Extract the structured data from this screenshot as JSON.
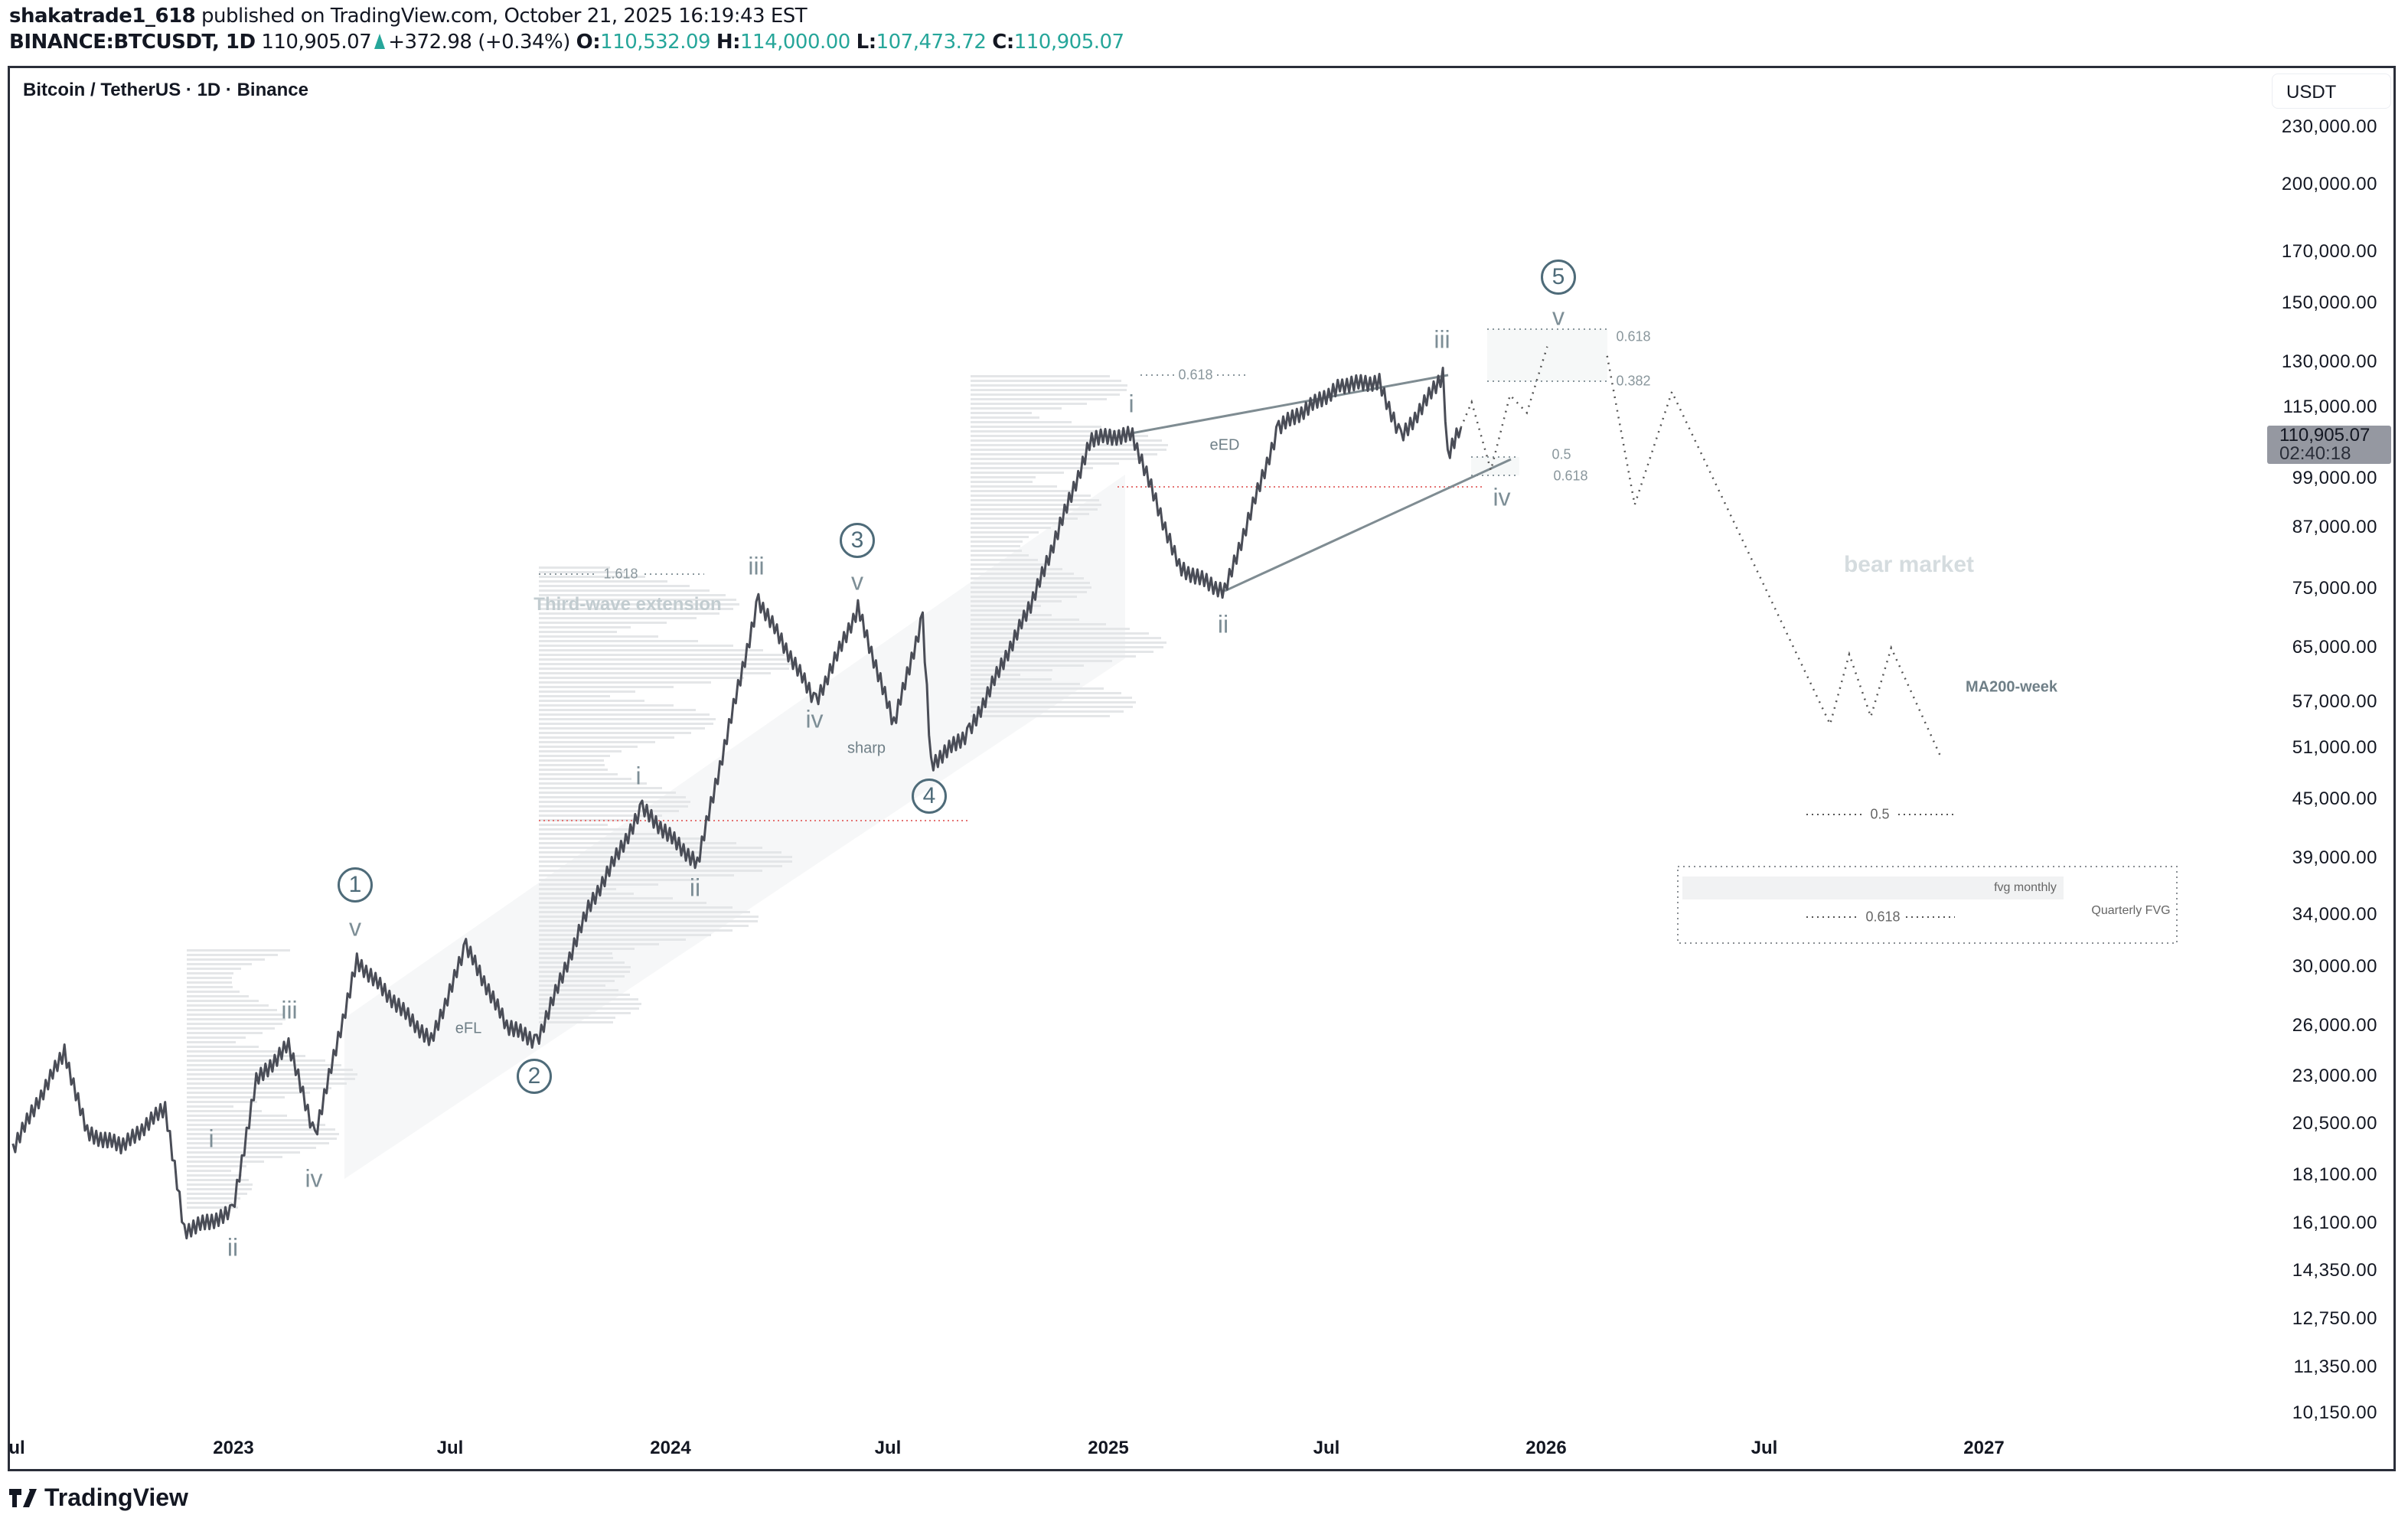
{
  "header": {
    "author": "shakatrade1_618",
    "published": "published on TradingView.com, October 21, 2025 16:19:43 EST",
    "symbol": "BINANCE:BTCUSDT, 1D",
    "last": "110,905.07",
    "change": "+372.98 (+0.34%)",
    "o_label": "O:",
    "o": "110,532.09",
    "h_label": "H:",
    "h": "114,000.00",
    "l_label": "L:",
    "l": "107,473.72",
    "c_label": "C:",
    "c": "110,905.07"
  },
  "chart_title": "Bitcoin / TetherUS · 1D · Binance",
  "currency": "USDT",
  "last_price_label": {
    "price": "110,905.07",
    "countdown": "02:40:18"
  },
  "brand": "TradingView",
  "colors": {
    "up": "#26a69a",
    "price_line": "#4a4d57",
    "wave_label": "#7d8e96",
    "circle_label": "#4e6b79",
    "fib_red": "#e57373"
  },
  "chart_data": {
    "type": "line",
    "scale": "log",
    "ylim": [
      10150,
      230000
    ],
    "grid": false,
    "y_ticks": [
      "230,000.00",
      "200,000.00",
      "170,000.00",
      "150,000.00",
      "130,000.00",
      "115,000.00",
      "99,000.00",
      "87,000.00",
      "75,000.00",
      "65,000.00",
      "57,000.00",
      "51,000.00",
      "45,000.00",
      "39,000.00",
      "34,000.00",
      "30,000.00",
      "26,000.00",
      "23,000.00",
      "20,500.00",
      "18,100.00",
      "16,100.00",
      "14,350.00",
      "12,750.00",
      "11,350.00",
      "10,150.00"
    ],
    "x_ticks": [
      "ul",
      "2023",
      "Jul",
      "2024",
      "Jul",
      "2025",
      "Jul",
      "2026",
      "Jul",
      "2027"
    ],
    "price": [
      [
        "2022-07-01",
        19300
      ],
      [
        "2022-08-13",
        24400
      ],
      [
        "2022-09-01",
        20000
      ],
      [
        "2022-10-01",
        19400
      ],
      [
        "2022-11-05",
        21300
      ],
      [
        "2022-11-21",
        15800
      ],
      [
        "2022-12-31",
        16500
      ],
      [
        "2023-01-20",
        22700
      ],
      [
        "2023-02-16",
        24800
      ],
      [
        "2023-03-10",
        19900
      ],
      [
        "2023-04-14",
        30400
      ],
      [
        "2023-06-15",
        25000
      ],
      [
        "2023-07-14",
        31500
      ],
      [
        "2023-08-17",
        26000
      ],
      [
        "2023-09-11",
        25000
      ],
      [
        "2023-10-24",
        34500
      ],
      [
        "2023-12-08",
        44000
      ],
      [
        "2024-01-23",
        38500
      ],
      [
        "2024-03-14",
        73000
      ],
      [
        "2024-05-01",
        57000
      ],
      [
        "2024-06-05",
        71500
      ],
      [
        "2024-07-05",
        54000
      ],
      [
        "2024-07-29",
        70000
      ],
      [
        "2024-08-05",
        49000
      ],
      [
        "2024-09-06",
        53000
      ],
      [
        "2024-10-29",
        73000
      ],
      [
        "2024-12-17",
        108000
      ],
      [
        "2025-01-20",
        109000
      ],
      [
        "2025-02-28",
        79000
      ],
      [
        "2025-04-07",
        74500
      ],
      [
        "2025-05-22",
        111000
      ],
      [
        "2025-07-14",
        123000
      ],
      [
        "2025-08-14",
        124000
      ],
      [
        "2025-09-01",
        108000
      ],
      [
        "2025-10-06",
        126000
      ],
      [
        "2025-10-10",
        104000
      ],
      [
        "2025-10-21",
        110905
      ]
    ],
    "projection_a": [
      [
        "2025-10-21",
        110905
      ],
      [
        "2025-10-30",
        118000
      ],
      [
        "2025-11-15",
        100000
      ],
      [
        "2025-12-01",
        120000
      ],
      [
        "2025-12-15",
        115000
      ],
      [
        "2026-01-01",
        135000
      ]
    ],
    "projection_b": [
      [
        "2026-02-20",
        132000
      ],
      [
        "2026-03-15",
        92000
      ],
      [
        "2026-04-15",
        121000
      ],
      [
        "2026-08-25",
        54000
      ],
      [
        "2026-09-10",
        64000
      ],
      [
        "2026-09-28",
        55000
      ],
      [
        "2026-10-15",
        65000
      ],
      [
        "2026-11-25",
        50000
      ]
    ]
  },
  "annotations": {
    "w1": "1",
    "w2": "2",
    "w3": "3",
    "w4": "4",
    "w5": "5",
    "v": "v",
    "iii": "iii",
    "i": "i",
    "iv": "iv",
    "ii": "ii",
    "efl": "eFL",
    "eed": "eED",
    "sharp": "sharp",
    "fib_1618": "1.618",
    "third_wave": "Third-wave extension",
    "fib_0618": "0.618",
    "fib_0382": "0.382",
    "fib_05": "0.5",
    "bear_market": "bear market",
    "ma200": "MA200-week",
    "fvg_monthly": "fvg monthly",
    "quarterly_fvg": "Quarterly FVG"
  }
}
